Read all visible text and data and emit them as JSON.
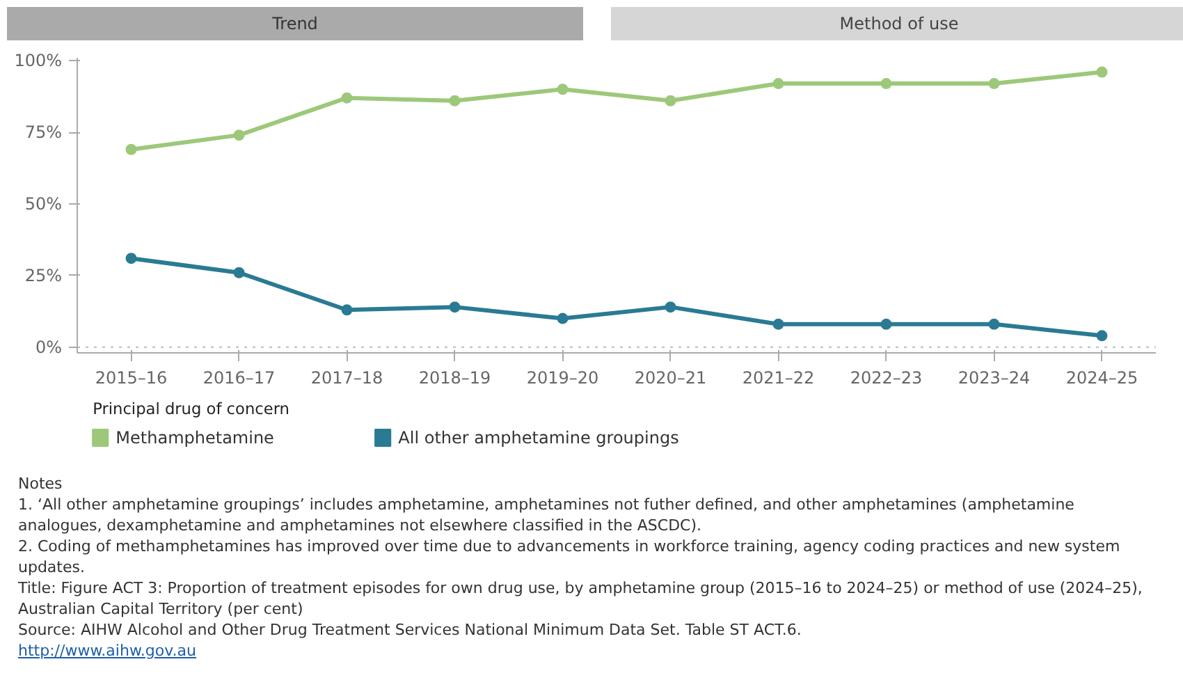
{
  "chart_data": {
    "type": "line",
    "categories": [
      "2015–16",
      "2016–17",
      "2017–18",
      "2018–19",
      "2019–20",
      "2020–21",
      "2021–22",
      "2022–23",
      "2023–24",
      "2024–25"
    ],
    "series": [
      {
        "name": "Methamphetamine",
        "color": "#9dc87a",
        "values": [
          69,
          74,
          87,
          86,
          90,
          86,
          92,
          92,
          92,
          96
        ]
      },
      {
        "name": "All other amphetamine groupings",
        "color": "#2a7a94",
        "values": [
          31,
          26,
          13,
          14,
          10,
          14,
          8,
          8,
          8,
          4
        ]
      }
    ],
    "ylim": [
      -2,
      101
    ],
    "yticks": [
      {
        "value": 0,
        "label": "0%"
      },
      {
        "value": 25,
        "label": "25%"
      },
      {
        "value": 50,
        "label": "50%"
      },
      {
        "value": 75,
        "label": "75%"
      },
      {
        "value": 100,
        "label": "100%"
      }
    ],
    "ref_lines": [
      {
        "axis": "y",
        "value": 0,
        "color": "#bbbbbb",
        "line_style": "dotted"
      }
    ],
    "grid": false,
    "marker": "circle",
    "line_style": "solid",
    "legend": "bottom",
    "legend_title": "Principal drug of concern",
    "annotations": [
      "Trend",
      "Method of use",
      "Notes",
      "1. ‘All other amphetamine groupings’ includes amphetamine, amphetamines not futher defined, and  other amphetamines (amphetamine analogues, dexamphetamine and amphetamines not elsewhere classified in the ASCDC).",
      "2. Coding of methamphetamines has improved over time due to advancements in workforce training, agency coding practices and new system updates.",
      "Title: Figure ACT 3: Proportion of treatment episodes for own drug use, by amphetamine group (2015–16 to 2024–25) or method of use (2024–25), Australian Capital Territory (per cent)",
      "Source: AIHW Alcohol and Other Drug Treatment Services National Minimum Data Set. Table ST ACT.6.",
      "http://www.aihw.gov.au"
    ]
  }
}
